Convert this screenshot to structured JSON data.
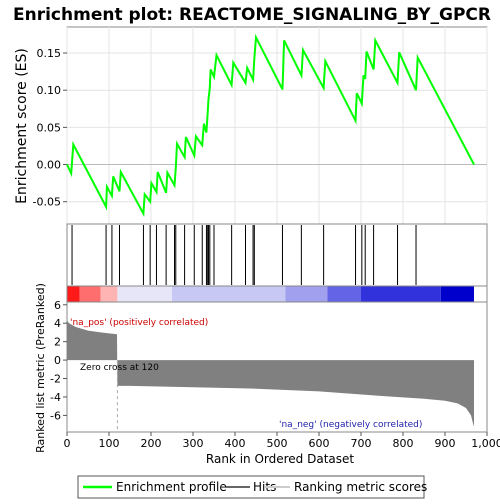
{
  "chart_data": {
    "type": "line",
    "title": "Enrichment plot: REACTOME_SIGNALING_BY_GPCR",
    "xlabel": "Rank in Ordered Dataset",
    "xlim": [
      0,
      1000
    ],
    "x_ticks": [
      "0",
      "100",
      "200",
      "300",
      "400",
      "500",
      "600",
      "700",
      "800",
      "900",
      "1,000"
    ],
    "x_tick_values": [
      0,
      100,
      200,
      300,
      400,
      500,
      600,
      700,
      800,
      900,
      1000
    ],
    "es_panel": {
      "ylabel": "Enrichment score (ES)",
      "ylim": [
        -0.08,
        0.185
      ],
      "y_ticks": [
        "-0.05",
        "0.00",
        "0.05",
        "0.10",
        "0.15"
      ],
      "y_tick_values": [
        -0.05,
        0.0,
        0.05,
        0.1,
        0.15
      ],
      "series_name": "Enrichment profile",
      "color": "#00ff00",
      "points": [
        [
          0,
          0.0
        ],
        [
          10,
          -0.012
        ],
        [
          15,
          0.027
        ],
        [
          93,
          -0.057
        ],
        [
          95,
          -0.03
        ],
        [
          107,
          -0.042
        ],
        [
          110,
          -0.016
        ],
        [
          125,
          -0.036
        ],
        [
          128,
          -0.01
        ],
        [
          182,
          -0.066
        ],
        [
          185,
          -0.04
        ],
        [
          198,
          -0.05
        ],
        [
          201,
          -0.025
        ],
        [
          213,
          -0.037
        ],
        [
          216,
          -0.01
        ],
        [
          236,
          -0.038
        ],
        [
          239,
          -0.011
        ],
        [
          256,
          -0.028
        ],
        [
          259,
          -0.004
        ],
        [
          262,
          0.028
        ],
        [
          280,
          0.01
        ],
        [
          283,
          0.037
        ],
        [
          303,
          0.012
        ],
        [
          307,
          0.038
        ],
        [
          322,
          0.026
        ],
        [
          326,
          0.055
        ],
        [
          332,
          0.043
        ],
        [
          335,
          0.07
        ],
        [
          337,
          0.088
        ],
        [
          340,
          0.103
        ],
        [
          342,
          0.128
        ],
        [
          350,
          0.118
        ],
        [
          356,
          0.147
        ],
        [
          392,
          0.107
        ],
        [
          396,
          0.137
        ],
        [
          425,
          0.11
        ],
        [
          429,
          0.13
        ],
        [
          443,
          0.114
        ],
        [
          446,
          0.142
        ],
        [
          450,
          0.171
        ],
        [
          513,
          0.101
        ],
        [
          517,
          0.167
        ],
        [
          558,
          0.12
        ],
        [
          562,
          0.154
        ],
        [
          611,
          0.103
        ],
        [
          615,
          0.139
        ],
        [
          687,
          0.059
        ],
        [
          690,
          0.096
        ],
        [
          702,
          0.082
        ],
        [
          706,
          0.12
        ],
        [
          710,
          0.115
        ],
        [
          713,
          0.152
        ],
        [
          730,
          0.128
        ],
        [
          734,
          0.167
        ],
        [
          787,
          0.11
        ],
        [
          791,
          0.151
        ],
        [
          831,
          0.1
        ],
        [
          835,
          0.144
        ],
        [
          969,
          0.0
        ]
      ]
    },
    "hits": [
      12,
      93,
      107,
      125,
      182,
      198,
      213,
      236,
      256,
      259,
      280,
      303,
      322,
      332,
      335,
      337,
      340,
      350,
      392,
      425,
      443,
      446,
      513,
      558,
      611,
      687,
      702,
      710,
      730,
      787,
      831
    ],
    "hits_label": "Hits",
    "ranking_label": "Ranking metric scores",
    "heatmap_colors": [
      "#ff1a1a",
      "#ff6e6e",
      "#ffb4b4",
      "#e6e6f8",
      "#c8c8f4",
      "#a0a0ee",
      "#6464e6",
      "#3232dc",
      "#0000cc"
    ],
    "metric_panel": {
      "ylabel": "Ranked list metric (PreRanked)",
      "ylim": [
        -7.8,
        6.3
      ],
      "y_ticks": [
        "6",
        "4",
        "2",
        "0",
        "-2",
        "-4",
        "-6"
      ],
      "y_tick_values": [
        6,
        4,
        2,
        0,
        -2,
        -4,
        -6
      ],
      "zero_cross_label": "Zero cross at 120",
      "zero_cross": 120,
      "pos_label": "'na_pos' (positively correlated)",
      "neg_label": "'na_neg' (negatively correlated)",
      "profile": [
        [
          0,
          4.3
        ],
        [
          5,
          4.0
        ],
        [
          20,
          3.6
        ],
        [
          50,
          3.2
        ],
        [
          80,
          3.0
        ],
        [
          119,
          2.8
        ],
        [
          120,
          -2.8
        ],
        [
          150,
          -2.8
        ],
        [
          300,
          -2.95
        ],
        [
          450,
          -3.1
        ],
        [
          600,
          -3.4
        ],
        [
          750,
          -3.9
        ],
        [
          850,
          -4.2
        ],
        [
          900,
          -4.4
        ],
        [
          930,
          -4.7
        ],
        [
          950,
          -5.2
        ],
        [
          962,
          -6.0
        ],
        [
          967,
          -6.9
        ],
        [
          969,
          -7.2
        ]
      ]
    },
    "n_genes": 969,
    "colors": {
      "profile": "#00ff00",
      "hits": "#000000",
      "metric_fill": "#808080",
      "pos_text": "#cc0000",
      "neg_text": "#2222aa",
      "zero_cross_line": "#aaaaaa"
    }
  },
  "legend": {
    "items": [
      {
        "name": "Enrichment profile",
        "icon": "green-line-icon"
      },
      {
        "name": "Hits",
        "icon": "hit-line-icon"
      },
      {
        "name": "Ranking metric scores",
        "icon": "gray-line-icon"
      }
    ]
  }
}
